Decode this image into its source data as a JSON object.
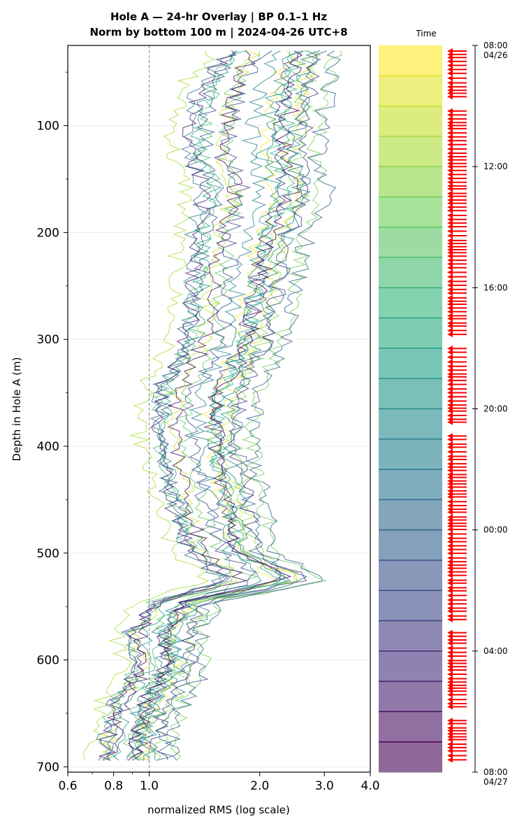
{
  "chart_data": {
    "type": "line",
    "title_line1": "Hole A — 24-hr Overlay  |  BP 0.1–1 Hz",
    "title_line2": "Norm by bottom 100 m  |  2024-04-26 UTC+8",
    "xlabel": "normalized RMS  (log scale)",
    "ylabel": "Depth in Hole A (m)",
    "xscale": "log",
    "xlim": [
      0.6,
      4.0
    ],
    "ylim": [
      705,
      25
    ],
    "x_ticks": [
      0.6,
      0.8,
      1.0,
      2.0,
      3.0,
      4.0
    ],
    "x_tick_labels": [
      "0.6",
      "0.8",
      "1.0",
      "2.0",
      "3.0",
      "4.0"
    ],
    "y_ticks": [
      100,
      200,
      300,
      400,
      500,
      600,
      700
    ],
    "y_tick_labels": [
      "100",
      "200",
      "300",
      "400",
      "500",
      "600",
      "700"
    ],
    "reference_line_x": 1.0,
    "grid": "horizontal",
    "colorbar": {
      "label": "Time",
      "tick_labels": [
        "08:00\n04/26",
        "12:00",
        "16:00",
        "20:00",
        "00:00",
        "04:00",
        "08:00\n04/27"
      ],
      "tick_hours": [
        0,
        4,
        8,
        12,
        16,
        20,
        24
      ],
      "colormap": "viridis",
      "n_bands": 24,
      "marker_color": "#ff0000"
    },
    "depth_profile": {
      "depths": [
        30,
        60,
        100,
        130,
        160,
        200,
        250,
        300,
        350,
        380,
        420,
        460,
        500,
        525,
        545,
        575,
        605,
        640,
        670,
        695
      ],
      "median_rms": [
        2.25,
        2.05,
        1.95,
        1.9,
        2.05,
        1.85,
        1.75,
        1.65,
        1.4,
        1.35,
        1.4,
        1.5,
        1.6,
        2.1,
        1.2,
        1.05,
        1.1,
        0.95,
        0.9,
        0.9
      ],
      "spread_low": [
        0.75,
        0.7,
        0.7,
        0.7,
        0.75,
        0.75,
        0.8,
        0.8,
        0.8,
        0.8,
        0.8,
        0.8,
        0.85,
        0.75,
        0.85,
        0.85,
        0.85,
        0.85,
        0.85,
        0.85
      ],
      "spread_high": [
        1.35,
        1.45,
        1.5,
        1.45,
        1.5,
        1.4,
        1.4,
        1.35,
        1.35,
        1.35,
        1.3,
        1.3,
        1.3,
        1.3,
        1.15,
        1.15,
        1.15,
        1.15,
        1.15,
        1.15
      ]
    },
    "series_count": 24,
    "colors": {
      "grid": "#e6e6e6",
      "reference_line": "#808080",
      "viridis_low": "#440154",
      "viridis_high": "#fde725"
    }
  }
}
